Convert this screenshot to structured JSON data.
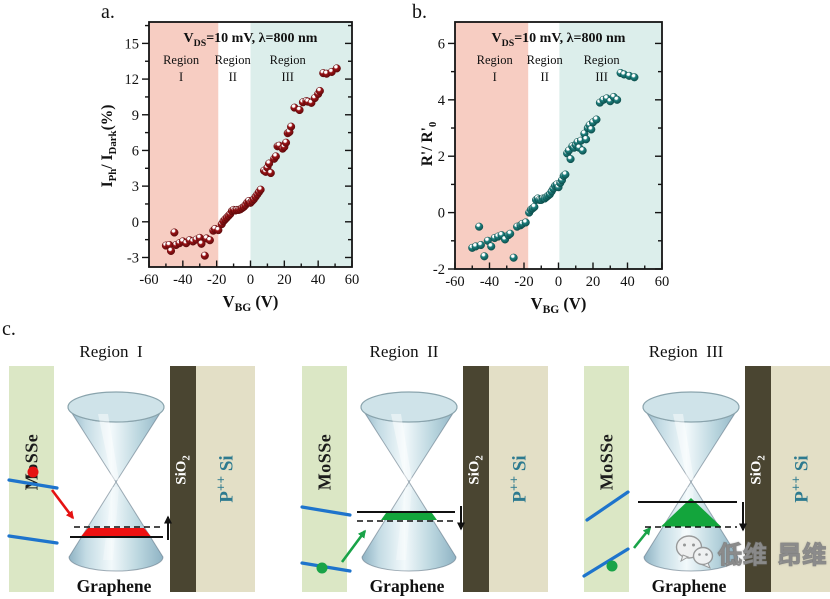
{
  "panels": {
    "a": "a.",
    "b": "b.",
    "c": "c."
  },
  "colors": {
    "accent_red": "#e51212",
    "accent_green": "#19a348",
    "accent_blue": "#1e74cc",
    "band_red": "#ee1111",
    "band_green": "#13a53c",
    "mosse_fill": "#dbe7c5",
    "sio2_fill": "#4a4531",
    "psi_fill": "#e3dfc6",
    "psi_text": "#2d7a8f",
    "region1_fill": "#f7cdc2",
    "region2_fill": "#ffffff",
    "region3_fill": "#dceeeb",
    "point_a": "#9b1215",
    "point_a_dark": "#5f0a0c",
    "point_b": "#1d807e",
    "point_b_dark": "#0d4f4d",
    "frame": "#141414"
  },
  "chart_data": [
    {
      "id": "a",
      "type": "scatter",
      "title_rich": [
        {
          "t": "V"
        },
        {
          "t": "DS",
          "s": "sub"
        },
        {
          "t": "=10 mV, λ=800 nm"
        }
      ],
      "xlabel_rich": [
        {
          "t": "V"
        },
        {
          "t": "BG",
          "s": "sub"
        },
        {
          "t": " (V)"
        }
      ],
      "ylabel_rich": [
        {
          "t": "I"
        },
        {
          "t": "Ph",
          "s": "sub"
        },
        {
          "t": "/ I"
        },
        {
          "t": "Dark",
          "s": "sub"
        },
        {
          "t": "(%)"
        }
      ],
      "xlim": [
        -60,
        60
      ],
      "ylim": [
        -3.8,
        16.8
      ],
      "xticks": [
        -60,
        -40,
        -20,
        0,
        20,
        40,
        60
      ],
      "yticks": [
        -3,
        0,
        3,
        6,
        9,
        12,
        15
      ],
      "x_minor_step": 10,
      "y_minor_step": 1.5,
      "regions": [
        {
          "label_lines": [
            "Region",
            "I"
          ],
          "from": -60,
          "to": -19,
          "fill": "#f7cdc2",
          "label_x": -41
        },
        {
          "label_lines": [
            "Region",
            "II"
          ],
          "from": -19,
          "to": 0,
          "fill": "#ffffff",
          "label_x": -10.5
        },
        {
          "label_lines": [
            "Region",
            "III"
          ],
          "from": 0,
          "to": 60,
          "fill": "#dceeeb",
          "label_x": 22
        }
      ],
      "point_color": "#9b1215",
      "point_dark": "#5f0a0c",
      "points": [
        [
          -50,
          -2.0
        ],
        [
          -48,
          -1.95
        ],
        [
          -47,
          -2.45
        ],
        [
          -45,
          -0.9
        ],
        [
          -44,
          -1.95
        ],
        [
          -42,
          -1.8
        ],
        [
          -40,
          -1.65
        ],
        [
          -38,
          -1.8
        ],
        [
          -36,
          -1.55
        ],
        [
          -34,
          -1.65
        ],
        [
          -32,
          -1.5
        ],
        [
          -30,
          -1.35
        ],
        [
          -29,
          -1.85
        ],
        [
          -27,
          -2.85
        ],
        [
          -26,
          -1.4
        ],
        [
          -24,
          -1.55
        ],
        [
          -22,
          -0.75
        ],
        [
          -21,
          -0.6
        ],
        [
          -19,
          -0.7
        ],
        [
          -17,
          -0.2
        ],
        [
          -16,
          0.05
        ],
        [
          -15,
          0.2
        ],
        [
          -14,
          0.35
        ],
        [
          -13,
          0.5
        ],
        [
          -12,
          0.65
        ],
        [
          -11,
          0.9
        ],
        [
          -10,
          1.0
        ],
        [
          -9,
          0.95
        ],
        [
          -8,
          1.0
        ],
        [
          -7,
          1.0
        ],
        [
          -6,
          1.05
        ],
        [
          -5,
          1.15
        ],
        [
          -4,
          1.25
        ],
        [
          -3,
          1.4
        ],
        [
          -2,
          1.6
        ],
        [
          -1,
          1.75
        ],
        [
          0,
          1.6
        ],
        [
          1,
          1.75
        ],
        [
          2,
          1.9
        ],
        [
          3,
          2.1
        ],
        [
          4,
          2.3
        ],
        [
          5,
          2.5
        ],
        [
          6,
          2.7
        ],
        [
          8,
          4.3
        ],
        [
          9,
          4.2
        ],
        [
          10,
          4.55
        ],
        [
          11,
          4.9
        ],
        [
          12,
          4.1
        ],
        [
          14,
          5.3
        ],
        [
          15,
          5.5
        ],
        [
          16,
          6.35
        ],
        [
          17,
          6.4
        ],
        [
          19,
          6.15
        ],
        [
          20,
          6.3
        ],
        [
          21,
          6.65
        ],
        [
          22,
          7.45
        ],
        [
          23,
          7.55
        ],
        [
          24,
          8.0
        ],
        [
          26,
          9.6
        ],
        [
          29,
          9.4
        ],
        [
          31,
          10.05
        ],
        [
          33,
          10.15
        ],
        [
          34,
          10.1
        ],
        [
          36,
          10.0
        ],
        [
          38,
          10.4
        ],
        [
          40,
          10.75
        ],
        [
          41,
          11.0
        ],
        [
          43,
          12.5
        ],
        [
          45,
          12.45
        ],
        [
          48,
          12.6
        ],
        [
          51,
          12.9
        ]
      ]
    },
    {
      "id": "b",
      "type": "scatter",
      "title_rich": [
        {
          "t": "V"
        },
        {
          "t": "DS",
          "s": "sub"
        },
        {
          "t": "=10 mV, λ=800 nm"
        }
      ],
      "xlabel_rich": [
        {
          "t": "V"
        },
        {
          "t": "BG",
          "s": "sub"
        },
        {
          "t": " (V)"
        }
      ],
      "ylabel_rich": [
        {
          "t": "R'/ R'"
        },
        {
          "t": "0",
          "s": "sub"
        }
      ],
      "xlim": [
        -60,
        60
      ],
      "ylim": [
        -2,
        6.76
      ],
      "xticks": [
        -60,
        -40,
        -20,
        0,
        20,
        40,
        60
      ],
      "yticks": [
        -2,
        0,
        2,
        4,
        6
      ],
      "x_minor_step": 10,
      "y_minor_step": 1,
      "regions": [
        {
          "label_lines": [
            "Region",
            "I"
          ],
          "from": -60,
          "to": -17.5,
          "fill": "#f7cdc2",
          "label_x": -37
        },
        {
          "label_lines": [
            "Region",
            "II"
          ],
          "from": -17.5,
          "to": 0.5,
          "fill": "#ffffff",
          "label_x": -8
        },
        {
          "label_lines": [
            "Region",
            "III"
          ],
          "from": 0.5,
          "to": 60,
          "fill": "#dceeeb",
          "label_x": 25
        }
      ],
      "point_color": "#1d807e",
      "point_dark": "#0d4f4d",
      "points": [
        [
          -50,
          -1.25
        ],
        [
          -48,
          -1.2
        ],
        [
          -46,
          -0.5
        ],
        [
          -45,
          -1.15
        ],
        [
          -43,
          -1.55
        ],
        [
          -41,
          -1.0
        ],
        [
          -39,
          -1.2
        ],
        [
          -37,
          -0.9
        ],
        [
          -35,
          -0.85
        ],
        [
          -33,
          -0.8
        ],
        [
          -31,
          -0.95
        ],
        [
          -29,
          -0.8
        ],
        [
          -28,
          -0.75
        ],
        [
          -26,
          -1.6
        ],
        [
          -24,
          -0.5
        ],
        [
          -22,
          -0.45
        ],
        [
          -21,
          -0.4
        ],
        [
          -19,
          -0.35
        ],
        [
          -17,
          0.0
        ],
        [
          -16,
          0.1
        ],
        [
          -15,
          0.15
        ],
        [
          -14,
          0.2
        ],
        [
          -13,
          0.45
        ],
        [
          -12,
          0.5
        ],
        [
          -11,
          0.45
        ],
        [
          -10,
          0.45
        ],
        [
          -9,
          0.5
        ],
        [
          -8,
          0.5
        ],
        [
          -7,
          0.55
        ],
        [
          -6,
          0.6
        ],
        [
          -5,
          0.65
        ],
        [
          -4,
          0.75
        ],
        [
          -3,
          0.85
        ],
        [
          -2,
          0.95
        ],
        [
          -1,
          1.0
        ],
        [
          0,
          0.9
        ],
        [
          1,
          1.05
        ],
        [
          2,
          1.15
        ],
        [
          3,
          1.3
        ],
        [
          4,
          1.35
        ],
        [
          5,
          2.1
        ],
        [
          6,
          2.2
        ],
        [
          7,
          1.9
        ],
        [
          8,
          2.35
        ],
        [
          9,
          2.3
        ],
        [
          10,
          2.4
        ],
        [
          11,
          2.5
        ],
        [
          12,
          2.3
        ],
        [
          13,
          2.55
        ],
        [
          14,
          2.2
        ],
        [
          15,
          2.8
        ],
        [
          16,
          2.6
        ],
        [
          17,
          3.0
        ],
        [
          18,
          3.1
        ],
        [
          19,
          2.95
        ],
        [
          20,
          3.2
        ],
        [
          22,
          3.3
        ],
        [
          24,
          3.9
        ],
        [
          26,
          4.0
        ],
        [
          28,
          4.05
        ],
        [
          30,
          3.95
        ],
        [
          32,
          4.1
        ],
        [
          34,
          4.0
        ],
        [
          36,
          4.95
        ],
        [
          38,
          4.9
        ],
        [
          41,
          4.85
        ],
        [
          44,
          4.8
        ]
      ]
    }
  ],
  "diagram": {
    "groups": [
      {
        "title": "Region  I",
        "mosse_label": "MoSSe",
        "sio2_rich": [
          {
            "t": "SiO"
          },
          {
            "t": "2",
            "s": "sub"
          }
        ],
        "psi_rich": [
          {
            "t": "P"
          },
          {
            "t": "++",
            "s": "sup"
          },
          {
            "t": " Si"
          }
        ],
        "bottom_label": "Graphene",
        "variant": "red_up"
      },
      {
        "title": "Region  II",
        "mosse_label": "MoSSe",
        "sio2_rich": [
          {
            "t": "SiO"
          },
          {
            "t": "2",
            "s": "sub"
          }
        ],
        "psi_rich": [
          {
            "t": "P"
          },
          {
            "t": "++",
            "s": "sup"
          },
          {
            "t": " Si"
          }
        ],
        "bottom_label": "Graphene",
        "variant": "green_small_down"
      },
      {
        "title": "Region  III",
        "mosse_label": "MoSSe",
        "sio2_rich": [
          {
            "t": "SiO"
          },
          {
            "t": "2",
            "s": "sub"
          }
        ],
        "psi_rich": [
          {
            "t": "P"
          },
          {
            "t": "++",
            "s": "sup"
          },
          {
            "t": " Si"
          }
        ],
        "bottom_label": "Graphene",
        "variant": "green_large_down"
      }
    ]
  },
  "watermark": {
    "text": "低维 昂维"
  }
}
